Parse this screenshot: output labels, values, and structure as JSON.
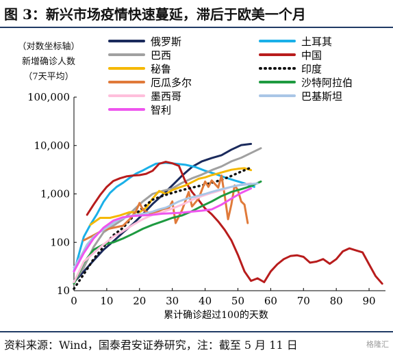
{
  "title": "图 3：新兴市场疫情快速蔓延，滞后于欧美一个月",
  "footer": "资料来源：Wind，国泰君安证券研究，注：截至 5 月 11 日",
  "watermark": "格隆汇",
  "chart_data": {
    "type": "line",
    "ylabel_lines": [
      "（对数坐标轴）",
      "新增确诊人数",
      "（7天平均）"
    ],
    "xlabel": "累计确诊超过100的天数",
    "y_scale": "log",
    "ylim": [
      10,
      100000
    ],
    "xlim": [
      0,
      95
    ],
    "x_ticks": [
      0,
      10,
      20,
      30,
      40,
      50,
      60,
      70,
      80,
      90
    ],
    "y_ticks": [
      10,
      100,
      1000,
      10000,
      100000
    ],
    "y_tick_labels": [
      "10",
      "100",
      "1,000",
      "10,000",
      "100,000"
    ],
    "grid": false,
    "legend_position": "top-right",
    "series": [
      {
        "name": "俄罗斯",
        "color": "#1a2a5c",
        "dash": false,
        "points": [
          [
            0,
            15
          ],
          [
            3,
            25
          ],
          [
            6,
            42
          ],
          [
            9,
            70
          ],
          [
            12,
            105
          ],
          [
            15,
            160
          ],
          [
            18,
            240
          ],
          [
            21,
            380
          ],
          [
            24,
            620
          ],
          [
            27,
            950
          ],
          [
            30,
            1500
          ],
          [
            33,
            2400
          ],
          [
            36,
            3600
          ],
          [
            39,
            4700
          ],
          [
            42,
            5500
          ],
          [
            45,
            6300
          ],
          [
            48,
            8200
          ],
          [
            51,
            10200
          ],
          [
            54,
            10800
          ]
        ]
      },
      {
        "name": "土耳其",
        "color": "#1ab0e8",
        "dash": false,
        "points": [
          [
            0,
            25
          ],
          [
            1,
            42
          ],
          [
            2,
            75
          ],
          [
            3,
            130
          ],
          [
            5,
            230
          ],
          [
            7,
            380
          ],
          [
            9,
            680
          ],
          [
            11,
            1050
          ],
          [
            13,
            1400
          ],
          [
            15,
            1700
          ],
          [
            17,
            2150
          ],
          [
            19,
            2650
          ],
          [
            21,
            3050
          ],
          [
            23,
            3600
          ],
          [
            25,
            4200
          ],
          [
            28,
            4400
          ],
          [
            31,
            4200
          ],
          [
            34,
            4000
          ],
          [
            37,
            3600
          ],
          [
            40,
            3000
          ],
          [
            43,
            2600
          ],
          [
            46,
            2200
          ],
          [
            49,
            1900
          ],
          [
            52,
            1650
          ],
          [
            55,
            1400
          ]
        ]
      },
      {
        "name": "巴西",
        "color": "#a0a0a0",
        "dash": false,
        "points": [
          [
            0,
            15
          ],
          [
            3,
            30
          ],
          [
            6,
            80
          ],
          [
            9,
            160
          ],
          [
            12,
            220
          ],
          [
            15,
            300
          ],
          [
            18,
            450
          ],
          [
            21,
            700
          ],
          [
            24,
            1000
          ],
          [
            27,
            1150
          ],
          [
            30,
            1300
          ],
          [
            33,
            1700
          ],
          [
            36,
            2100
          ],
          [
            39,
            2500
          ],
          [
            42,
            3100
          ],
          [
            45,
            3700
          ],
          [
            48,
            4700
          ],
          [
            51,
            5600
          ],
          [
            54,
            7000
          ],
          [
            57,
            8800
          ]
        ]
      },
      {
        "name": "中国",
        "color": "#b81c1c",
        "dash": false,
        "points": [
          [
            4,
            370
          ],
          [
            6,
            600
          ],
          [
            8,
            950
          ],
          [
            10,
            1400
          ],
          [
            12,
            1850
          ],
          [
            14,
            2100
          ],
          [
            16,
            2300
          ],
          [
            18,
            2400
          ],
          [
            20,
            2450
          ],
          [
            22,
            2600
          ],
          [
            24,
            3000
          ],
          [
            26,
            4200
          ],
          [
            28,
            4600
          ],
          [
            30,
            4300
          ],
          [
            32,
            3800
          ],
          [
            34,
            1800
          ],
          [
            36,
            1100
          ],
          [
            38,
            750
          ],
          [
            40,
            500
          ],
          [
            42,
            380
          ],
          [
            44,
            270
          ],
          [
            46,
            180
          ],
          [
            48,
            110
          ],
          [
            50,
            55
          ],
          [
            52,
            25
          ],
          [
            54,
            16
          ],
          [
            56,
            18
          ],
          [
            58,
            15
          ],
          [
            60,
            25
          ],
          [
            62,
            35
          ],
          [
            64,
            45
          ],
          [
            66,
            52
          ],
          [
            68,
            54
          ],
          [
            70,
            50
          ],
          [
            72,
            38
          ],
          [
            74,
            40
          ],
          [
            76,
            45
          ],
          [
            78,
            36
          ],
          [
            80,
            45
          ],
          [
            82,
            65
          ],
          [
            84,
            75
          ],
          [
            86,
            68
          ],
          [
            88,
            62
          ],
          [
            90,
            35
          ],
          [
            92,
            20
          ],
          [
            94,
            14
          ]
        ]
      },
      {
        "name": "秘鲁",
        "color": "#f5b800",
        "dash": false,
        "points": [
          [
            5,
            230
          ],
          [
            8,
            320
          ],
          [
            11,
            320
          ],
          [
            14,
            360
          ],
          [
            17,
            420
          ],
          [
            20,
            420
          ],
          [
            22,
            520
          ],
          [
            24,
            800
          ],
          [
            26,
            1150
          ],
          [
            28,
            1000
          ],
          [
            30,
            1200
          ],
          [
            32,
            1350
          ],
          [
            34,
            1500
          ],
          [
            36,
            1750
          ],
          [
            38,
            2050
          ],
          [
            40,
            2200
          ],
          [
            42,
            2450
          ],
          [
            44,
            2650
          ],
          [
            46,
            2900
          ],
          [
            48,
            3150
          ],
          [
            50,
            3300
          ],
          [
            52,
            3400
          ],
          [
            54,
            3100
          ]
        ]
      },
      {
        "name": "印度",
        "color": "#111111",
        "dash": true,
        "points": [
          [
            0,
            11
          ],
          [
            3,
            22
          ],
          [
            6,
            45
          ],
          [
            9,
            80
          ],
          [
            12,
            140
          ],
          [
            15,
            200
          ],
          [
            18,
            340
          ],
          [
            21,
            520
          ],
          [
            24,
            760
          ],
          [
            27,
            910
          ],
          [
            30,
            1050
          ],
          [
            33,
            1200
          ],
          [
            36,
            1350
          ],
          [
            39,
            1500
          ],
          [
            42,
            1700
          ],
          [
            45,
            1950
          ],
          [
            48,
            2350
          ],
          [
            51,
            2900
          ],
          [
            54,
            3500
          ]
        ]
      },
      {
        "name": "厄瓜多尔",
        "color": "#e07a3a",
        "dash": false,
        "points": [
          [
            3,
            110
          ],
          [
            6,
            140
          ],
          [
            9,
            180
          ],
          [
            12,
            200
          ],
          [
            15,
            220
          ],
          [
            17,
            300
          ],
          [
            19,
            450
          ],
          [
            20,
            650
          ],
          [
            21,
            470
          ],
          [
            23,
            400
          ],
          [
            25,
            420
          ],
          [
            27,
            480
          ],
          [
            29,
            520
          ],
          [
            30,
            700
          ],
          [
            31,
            250
          ],
          [
            33,
            470
          ],
          [
            35,
            1100
          ],
          [
            36,
            550
          ],
          [
            38,
            800
          ],
          [
            40,
            1800
          ],
          [
            41,
            1400
          ],
          [
            42,
            1900
          ],
          [
            44,
            1350
          ],
          [
            45,
            2400
          ],
          [
            46,
            900
          ],
          [
            47,
            300
          ],
          [
            48,
            600
          ],
          [
            49,
            1500
          ],
          [
            50,
            1200
          ],
          [
            51,
            700
          ],
          [
            52,
            600
          ],
          [
            53,
            250
          ]
        ]
      },
      {
        "name": "沙特阿拉伯",
        "color": "#1e9a40",
        "dash": false,
        "points": [
          [
            0,
            14
          ],
          [
            3,
            38
          ],
          [
            6,
            70
          ],
          [
            9,
            90
          ],
          [
            12,
            100
          ],
          [
            15,
            120
          ],
          [
            18,
            150
          ],
          [
            21,
            190
          ],
          [
            24,
            230
          ],
          [
            27,
            270
          ],
          [
            30,
            320
          ],
          [
            33,
            360
          ],
          [
            36,
            440
          ],
          [
            39,
            560
          ],
          [
            42,
            700
          ],
          [
            45,
            900
          ],
          [
            48,
            1100
          ],
          [
            51,
            1250
          ],
          [
            54,
            1450
          ],
          [
            57,
            1800
          ]
        ]
      },
      {
        "name": "墨西哥",
        "color": "#ffbfdc",
        "dash": false,
        "points": [
          [
            0,
            15
          ],
          [
            3,
            40
          ],
          [
            6,
            60
          ],
          [
            9,
            90
          ],
          [
            12,
            130
          ],
          [
            15,
            170
          ],
          [
            18,
            230
          ],
          [
            21,
            300
          ],
          [
            24,
            370
          ],
          [
            27,
            420
          ],
          [
            30,
            500
          ],
          [
            33,
            600
          ],
          [
            36,
            750
          ],
          [
            39,
            900
          ],
          [
            42,
            1050
          ],
          [
            45,
            1200
          ],
          [
            48,
            1400
          ],
          [
            51,
            1550
          ],
          [
            54,
            1650
          ]
        ]
      },
      {
        "name": "巴基斯坦",
        "color": "#a9c6e6",
        "dash": false,
        "points": [
          [
            0,
            30
          ],
          [
            2,
            50
          ],
          [
            4,
            90
          ],
          [
            6,
            130
          ],
          [
            8,
            165
          ],
          [
            10,
            200
          ],
          [
            12,
            250
          ],
          [
            14,
            300
          ],
          [
            16,
            330
          ],
          [
            18,
            360
          ],
          [
            20,
            380
          ],
          [
            22,
            400
          ],
          [
            24,
            430
          ],
          [
            26,
            480
          ],
          [
            28,
            520
          ],
          [
            30,
            600
          ],
          [
            32,
            700
          ],
          [
            34,
            780
          ],
          [
            36,
            850
          ],
          [
            38,
            920
          ],
          [
            40,
            1000
          ],
          [
            42,
            1100
          ],
          [
            44,
            1200
          ],
          [
            46,
            1300
          ],
          [
            48,
            1400
          ],
          [
            50,
            1500
          ],
          [
            52,
            1550
          ],
          [
            54,
            1600
          ],
          [
            56,
            1650
          ]
        ]
      },
      {
        "name": "智利",
        "color": "#ee55ee",
        "dash": false,
        "points": [
          [
            0,
            25
          ],
          [
            3,
            60
          ],
          [
            6,
            120
          ],
          [
            9,
            200
          ],
          [
            12,
            280
          ],
          [
            15,
            330
          ],
          [
            18,
            350
          ],
          [
            21,
            360
          ],
          [
            24,
            370
          ],
          [
            27,
            390
          ],
          [
            30,
            400
          ],
          [
            33,
            410
          ],
          [
            36,
            430
          ],
          [
            39,
            450
          ],
          [
            42,
            480
          ],
          [
            45,
            600
          ],
          [
            48,
            800
          ],
          [
            51,
            1050
          ],
          [
            54,
            1300
          ]
        ]
      }
    ]
  }
}
